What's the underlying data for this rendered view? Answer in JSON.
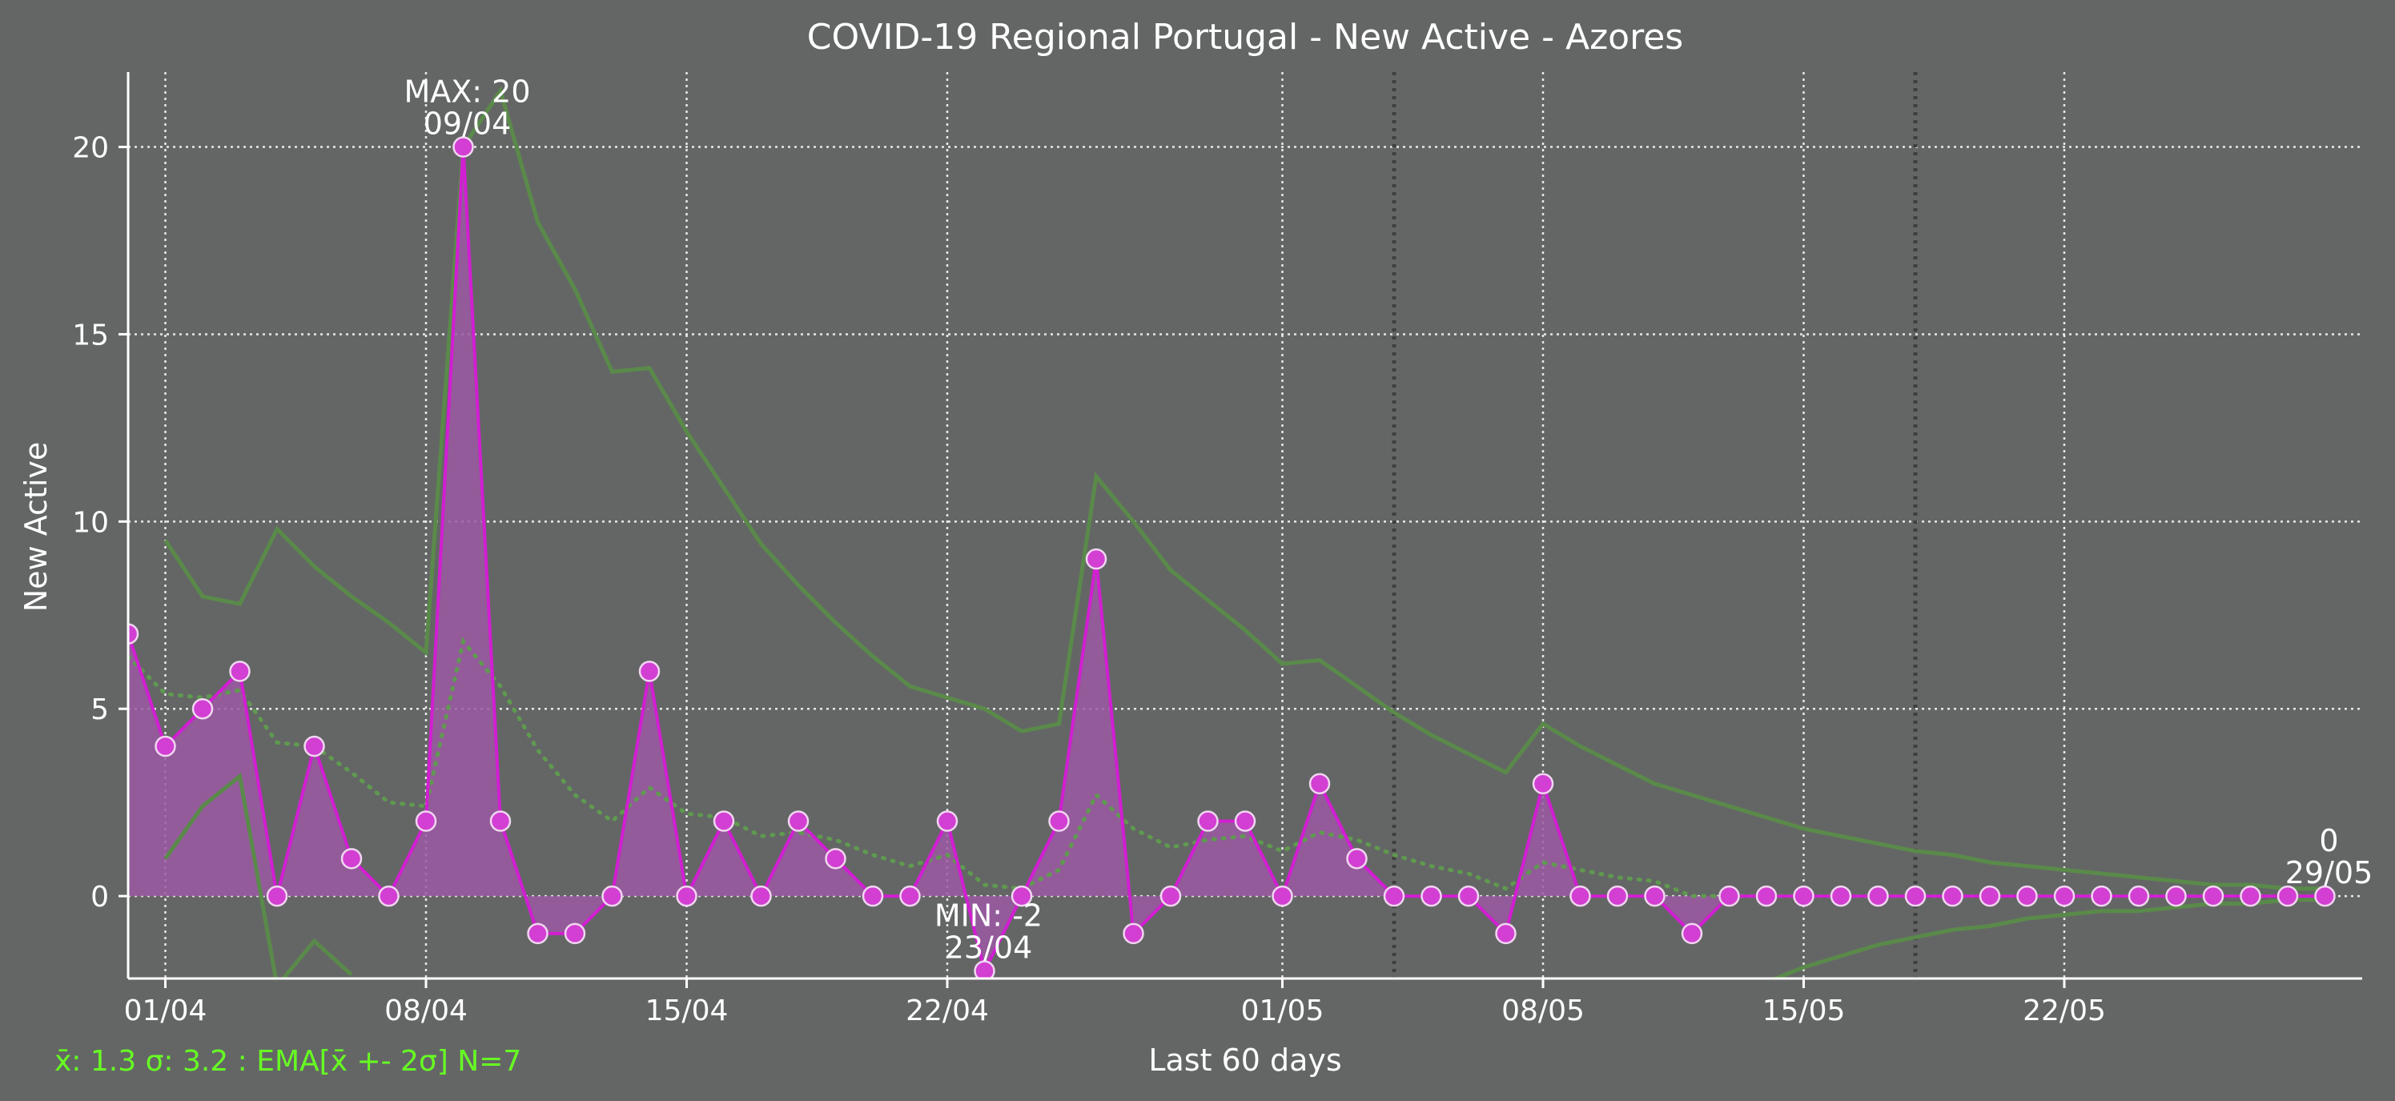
{
  "chart_data": {
    "type": "line",
    "title": "COVID-19 Regional Portugal - New Active - Azores",
    "xlabel": "Last 60 days",
    "ylabel": "New Active",
    "ylim": [
      -2.2,
      22
    ],
    "xlim": [
      "2020-03-31",
      "2020-05-30"
    ],
    "x_ticks": [
      {
        "date": "2020-04-01",
        "label": "01/04"
      },
      {
        "date": "2020-04-08",
        "label": "08/04"
      },
      {
        "date": "2020-04-15",
        "label": "15/04"
      },
      {
        "date": "2020-04-22",
        "label": "22/04"
      },
      {
        "date": "2020-05-01",
        "label": "01/05"
      },
      {
        "date": "2020-05-08",
        "label": "08/05"
      },
      {
        "date": "2020-05-15",
        "label": "15/05"
      },
      {
        "date": "2020-05-22",
        "label": "22/05"
      }
    ],
    "y_ticks": [
      0,
      5,
      10,
      15,
      20
    ],
    "weekend_markers": [
      "2020-05-04",
      "2020-05-18"
    ],
    "grid": true,
    "colors": {
      "background": "#646666",
      "series": "#d21ed2",
      "fill": "#9b59a3",
      "marker": "#d23fd2",
      "bands": "#5a8a4a",
      "ema": "#5f9a4f",
      "stats_text": "#66ff22",
      "text": "#ffffff"
    },
    "x": [
      "2020-03-31",
      "2020-04-01",
      "2020-04-02",
      "2020-04-03",
      "2020-04-04",
      "2020-04-05",
      "2020-04-06",
      "2020-04-07",
      "2020-04-08",
      "2020-04-09",
      "2020-04-10",
      "2020-04-11",
      "2020-04-12",
      "2020-04-13",
      "2020-04-14",
      "2020-04-15",
      "2020-04-16",
      "2020-04-17",
      "2020-04-18",
      "2020-04-19",
      "2020-04-20",
      "2020-04-21",
      "2020-04-22",
      "2020-04-23",
      "2020-04-24",
      "2020-04-25",
      "2020-04-26",
      "2020-04-27",
      "2020-04-28",
      "2020-04-29",
      "2020-04-30",
      "2020-05-01",
      "2020-05-02",
      "2020-05-03",
      "2020-05-04",
      "2020-05-05",
      "2020-05-06",
      "2020-05-07",
      "2020-05-08",
      "2020-05-09",
      "2020-05-10",
      "2020-05-11",
      "2020-05-12",
      "2020-05-13",
      "2020-05-14",
      "2020-05-15",
      "2020-05-16",
      "2020-05-17",
      "2020-05-18",
      "2020-05-19",
      "2020-05-20",
      "2020-05-21",
      "2020-05-22",
      "2020-05-23",
      "2020-05-24",
      "2020-05-25",
      "2020-05-26",
      "2020-05-27",
      "2020-05-28",
      "2020-05-29"
    ],
    "series": [
      {
        "values": [
          7,
          4,
          5,
          6,
          0,
          4,
          1,
          0,
          2,
          20,
          2,
          -1,
          -1,
          0,
          6,
          0,
          2,
          0,
          2,
          1,
          0,
          0,
          2,
          -2,
          0,
          2,
          9,
          -1,
          0,
          2,
          2,
          0,
          3,
          1,
          0,
          0,
          0,
          -1,
          3,
          0,
          0,
          0,
          -1,
          0,
          0,
          0,
          0,
          0,
          0,
          0,
          0,
          0,
          0,
          0,
          0,
          0,
          0,
          0,
          0,
          0
        ]
      }
    ],
    "ema": [
      6.4,
      5.4,
      5.3,
      5.5,
      4.1,
      4.0,
      3.3,
      2.5,
      2.4,
      6.8,
      5.6,
      3.9,
      2.7,
      2.0,
      2.9,
      2.2,
      2.1,
      1.6,
      1.7,
      1.5,
      1.1,
      0.8,
      1.1,
      0.3,
      0.2,
      0.7,
      2.7,
      1.8,
      1.3,
      1.5,
      1.6,
      1.2,
      1.7,
      1.5,
      1.1,
      0.8,
      0.6,
      0.2,
      0.9,
      0.7,
      0.5,
      0.4,
      0.0,
      0.0,
      0.0,
      0.0,
      0.0,
      0.0,
      0.0,
      0.0,
      0.0,
      0.0,
      0.0,
      0.0,
      0.0,
      0.0,
      0.0,
      0.0,
      0.0,
      0.0
    ],
    "upper_band": [
      null,
      9.5,
      8.0,
      7.8,
      9.8,
      8.8,
      8.0,
      7.3,
      6.5,
      20.0,
      21.5,
      18.0,
      16.2,
      14.0,
      14.1,
      12.4,
      10.9,
      9.4,
      8.3,
      7.3,
      6.4,
      5.6,
      5.3,
      5.0,
      4.4,
      4.6,
      11.2,
      10.0,
      8.7,
      7.9,
      7.1,
      6.2,
      6.3,
      5.6,
      4.9,
      4.3,
      3.8,
      3.3,
      4.6,
      4.0,
      3.5,
      3.0,
      2.7,
      2.4,
      2.1,
      1.8,
      1.6,
      1.4,
      1.2,
      1.1,
      0.9,
      0.8,
      0.7,
      0.6,
      0.5,
      0.4,
      0.3,
      0.3,
      0.2,
      0.2
    ],
    "lower_band": [
      null,
      1.0,
      2.4,
      3.2,
      -2.4,
      -1.2,
      -2.1,
      null,
      null,
      null,
      null,
      null,
      null,
      null,
      null,
      null,
      null,
      null,
      null,
      null,
      null,
      null,
      null,
      null,
      null,
      null,
      null,
      null,
      null,
      null,
      null,
      null,
      null,
      null,
      null,
      null,
      null,
      null,
      null,
      null,
      null,
      null,
      null,
      null,
      -2.3,
      -1.9,
      -1.6,
      -1.3,
      -1.1,
      -0.9,
      -0.8,
      -0.6,
      -0.5,
      -0.4,
      -0.4,
      -0.3,
      -0.2,
      -0.2,
      -0.1,
      -0.1
    ],
    "annotations": [
      {
        "lines": [
          "MAX: 20",
          "09/04"
        ],
        "x": "2020-04-09",
        "y": 20
      },
      {
        "lines": [
          "MIN: -2",
          "23/04"
        ],
        "x": "2020-04-23",
        "y": -2
      },
      {
        "lines": [
          "0",
          "29/05"
        ],
        "x": "2020-05-29",
        "y": 0
      }
    ],
    "stats_text": "x̄: 1.3 σ: 3.2 : EMA[x̄ +- 2σ] N=7"
  }
}
